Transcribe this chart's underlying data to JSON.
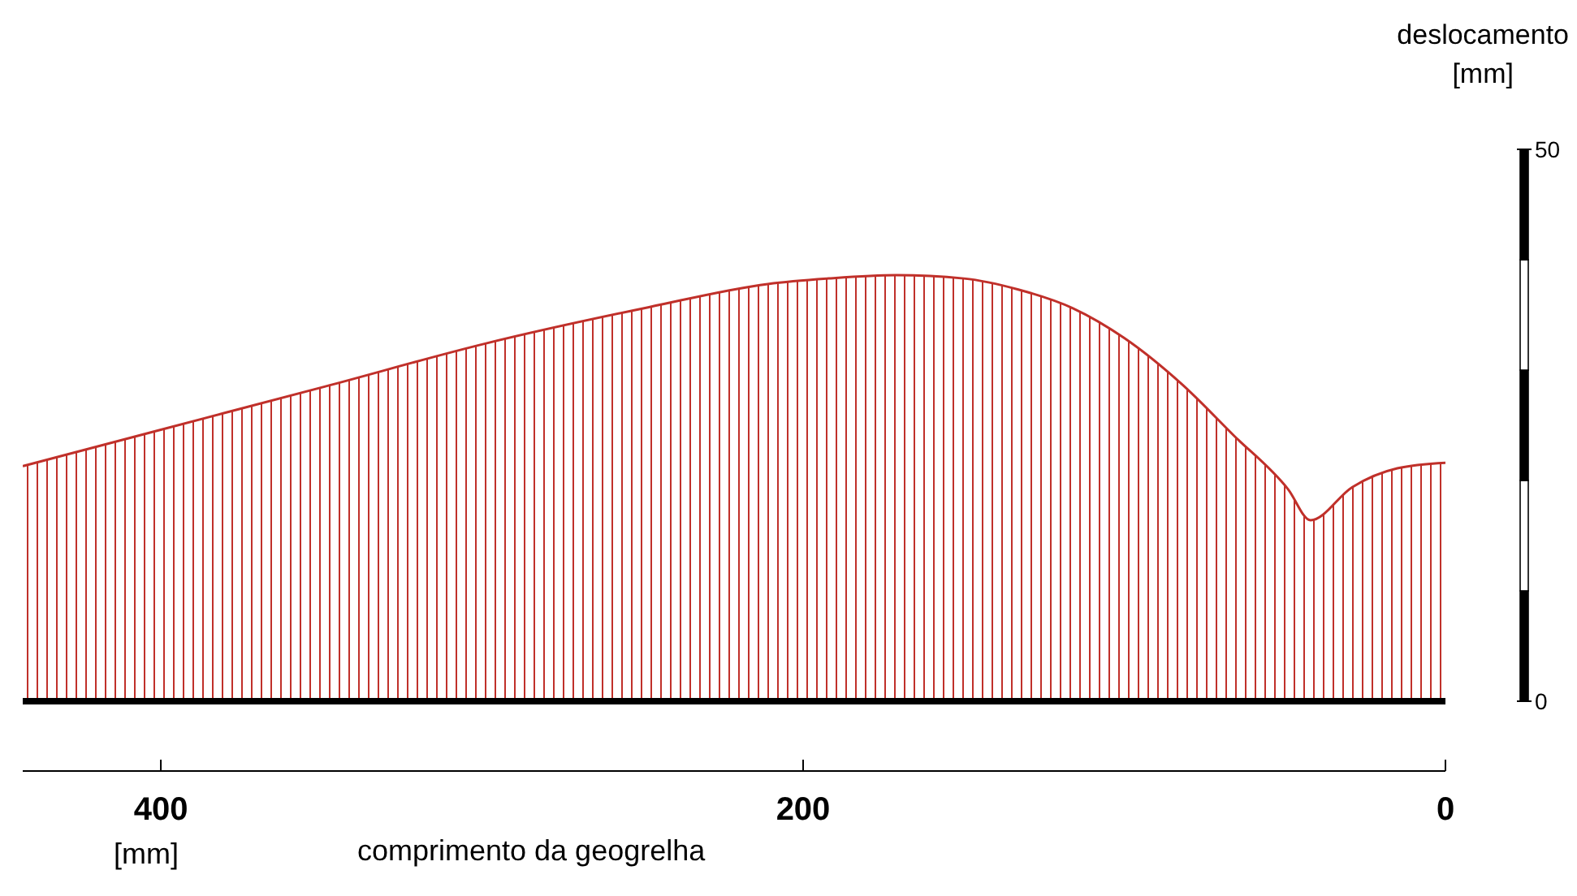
{
  "chart_data": {
    "type": "area",
    "xlabel": "comprimento da geogrelha",
    "ylabel": "deslocamento\n[mm]",
    "annotations": [
      "[mm]"
    ],
    "x": [
      443,
      400,
      349,
      299,
      248,
      211,
      192,
      171,
      150,
      133,
      116,
      100,
      82,
      66,
      49,
      42,
      29,
      15,
      0
    ],
    "series": [
      {
        "color": "#c0302a",
        "values": [
          21.3,
          24.6,
          28.5,
          32.4,
          35.7,
          37.8,
          38.3,
          38.6,
          38.3,
          37.3,
          35.6,
          32.9,
          28.7,
          24.1,
          19.2,
          16.4,
          19.4,
          21.1,
          21.6
        ]
      }
    ],
    "xlim": [
      443,
      0
    ],
    "xticks": [
      400,
      200,
      0
    ],
    "ylim": [
      0,
      50
    ],
    "yticks": [
      0,
      50
    ],
    "ref_lines": [
      {
        "axis": "y",
        "value": 0,
        "label": null,
        "color": "#000000"
      }
    ]
  }
}
